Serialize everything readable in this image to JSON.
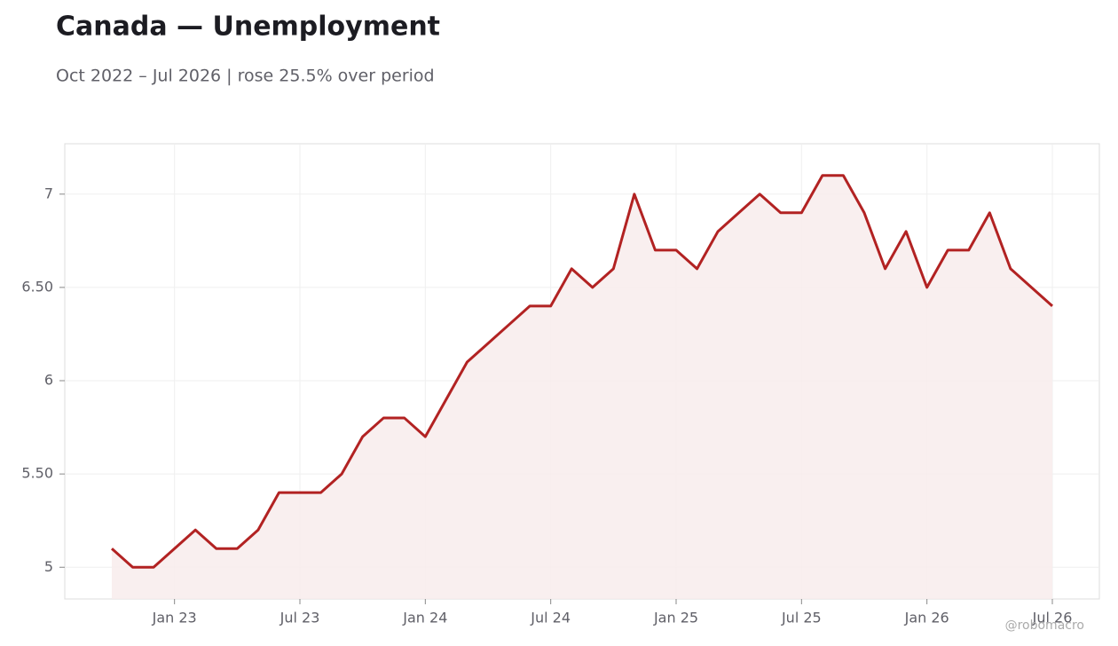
{
  "chart_data": {
    "type": "line",
    "title": "Canada — Unemployment",
    "subtitle": "Oct 2022 – Jul 2026 | rose 25.5% over period",
    "watermark": "@robomacro",
    "x": [
      "2022-10",
      "2022-11",
      "2022-12",
      "2023-01",
      "2023-02",
      "2023-03",
      "2023-04",
      "2023-05",
      "2023-06",
      "2023-07",
      "2023-08",
      "2023-09",
      "2023-10",
      "2023-11",
      "2023-12",
      "2024-01",
      "2024-02",
      "2024-03",
      "2024-04",
      "2024-05",
      "2024-06",
      "2024-07",
      "2024-08",
      "2024-09",
      "2024-10",
      "2024-11",
      "2024-12",
      "2025-01",
      "2025-02",
      "2025-03",
      "2025-04",
      "2025-05",
      "2025-06",
      "2025-07",
      "2025-08",
      "2025-09",
      "2025-10",
      "2025-11",
      "2025-12",
      "2026-01",
      "2026-02",
      "2026-03",
      "2026-04",
      "2026-05",
      "2026-06",
      "2026-07"
    ],
    "series": [
      {
        "name": "Unemployment",
        "color": "#b22222",
        "fill": "#f8ecec",
        "values": [
          5.1,
          5.0,
          5.0,
          5.1,
          5.2,
          5.1,
          5.1,
          5.2,
          5.4,
          5.4,
          5.4,
          5.5,
          5.7,
          5.8,
          5.8,
          5.7,
          5.9,
          6.1,
          6.2,
          6.3,
          6.4,
          6.4,
          6.6,
          6.5,
          6.6,
          7.0,
          6.7,
          6.7,
          6.6,
          6.8,
          6.9,
          7.0,
          6.9,
          6.9,
          7.1,
          7.1,
          6.9,
          6.6,
          6.8,
          6.5,
          6.7,
          6.7,
          6.9,
          6.6,
          6.5,
          6.4
        ]
      }
    ],
    "xticks": [
      {
        "value": "2023-01",
        "label": "Jan 23"
      },
      {
        "value": "2023-07",
        "label": "Jul 23"
      },
      {
        "value": "2024-01",
        "label": "Jan 24"
      },
      {
        "value": "2024-07",
        "label": "Jul 24"
      },
      {
        "value": "2025-01",
        "label": "Jan 25"
      },
      {
        "value": "2025-07",
        "label": "Jul 25"
      },
      {
        "value": "2026-01",
        "label": "Jan 26"
      },
      {
        "value": "2026-07",
        "label": "Jul 26"
      }
    ],
    "ylim": [
      4.83,
      7.27
    ],
    "yticks": [
      5,
      {
        "value": 5.5,
        "label": "5.50"
      },
      6,
      {
        "value": 6.5,
        "label": "6.50"
      },
      7
    ],
    "grid": true
  }
}
